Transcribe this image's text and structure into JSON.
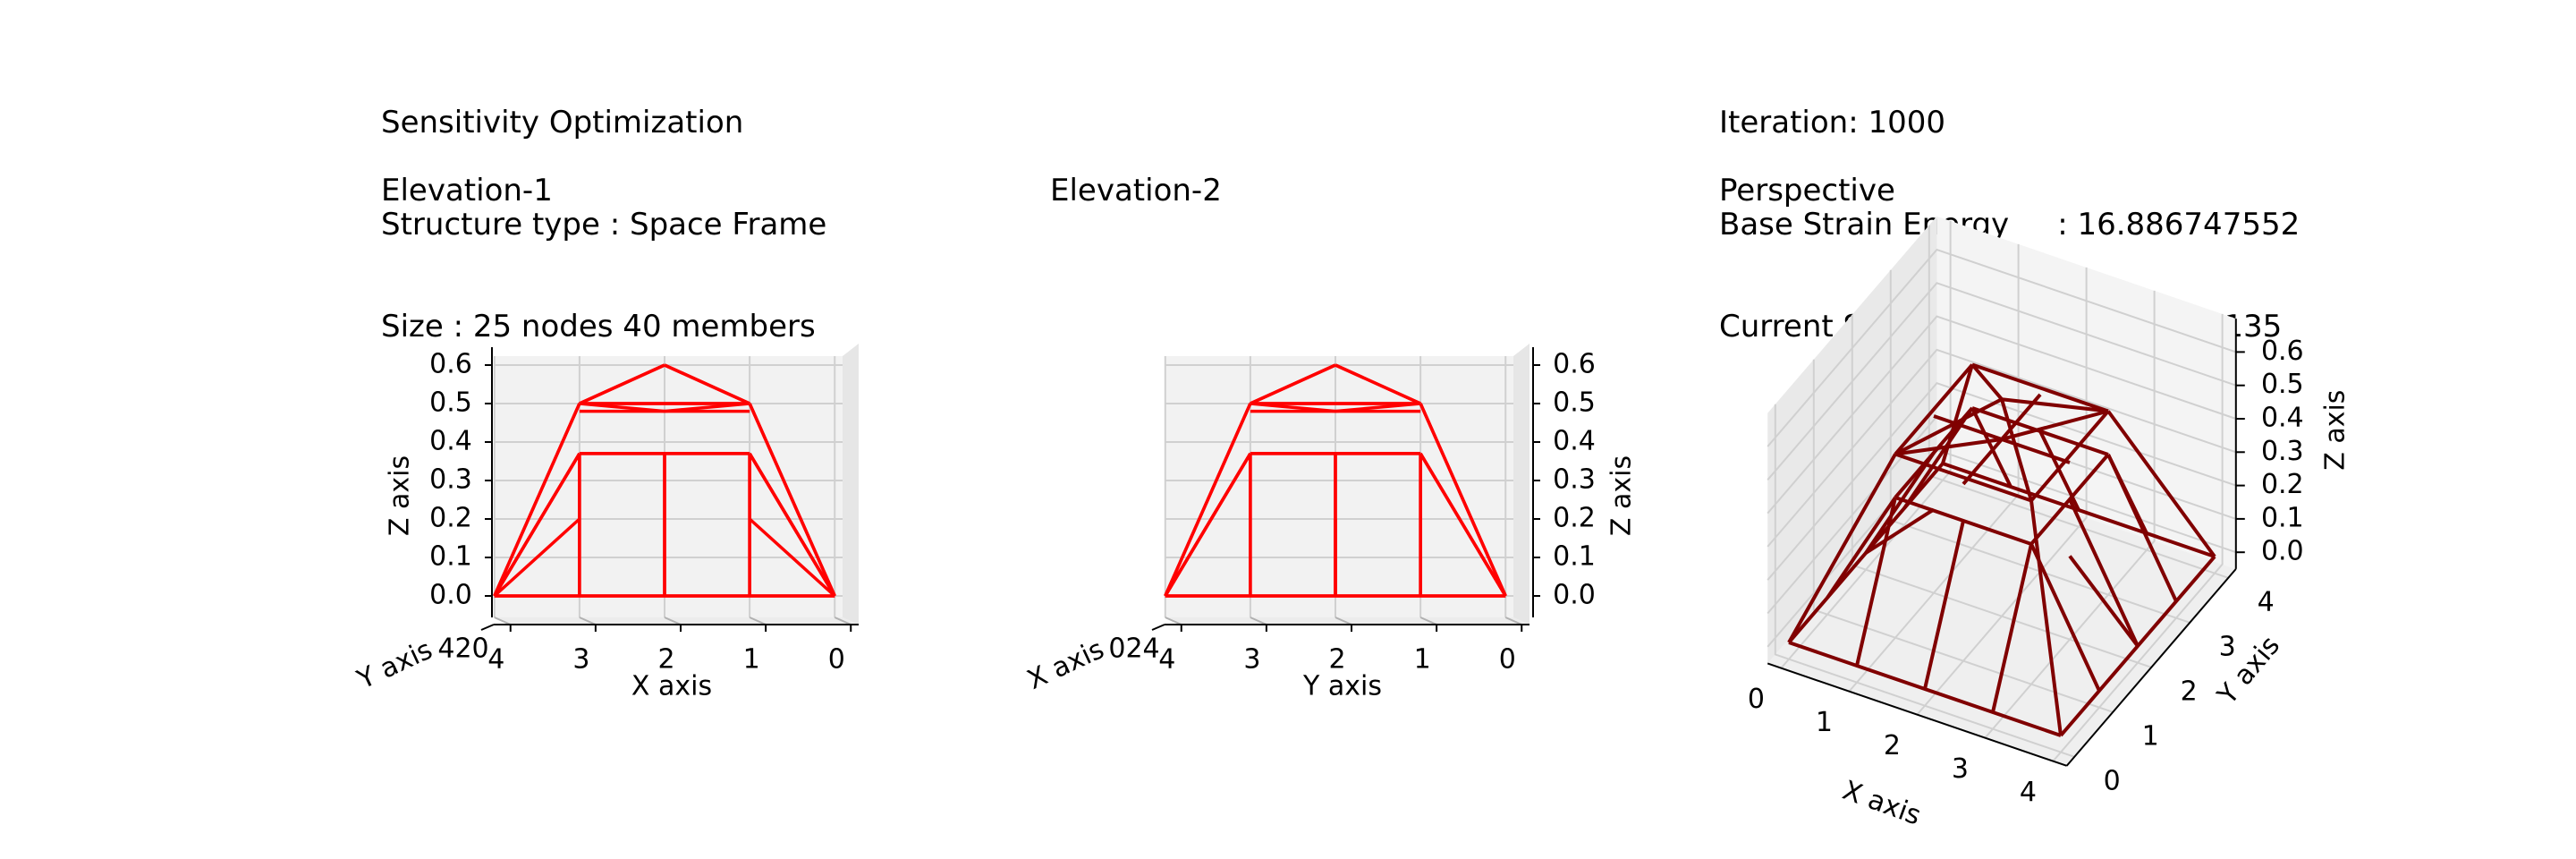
{
  "info_left": {
    "line1": "Sensitivity Optimization",
    "line2": "Structure type : Space Frame",
    "line3": "Size : 25 nodes 40 members"
  },
  "info_right": {
    "line1": "Iteration: 1000",
    "line2": "Base Strain Energy     : 16.886747552",
    "line3": "Current Strain Energy : 0.569571135"
  },
  "colors": {
    "elevation_member": "#ff0000",
    "perspective_member": "#800000",
    "pane": "#f2f2f2",
    "grid": "#d0d0d0"
  },
  "chart_data": [
    {
      "type": "3d-line",
      "title": "Elevation-1",
      "view": "front elevation (looking along Y)",
      "xlabel": "X axis",
      "ylabel": "Y axis",
      "zlabel": "Z axis",
      "x_ticks": [
        "4",
        "3",
        "2",
        "1",
        "0"
      ],
      "z_ticks": [
        "0.0",
        "0.1",
        "0.2",
        "0.3",
        "0.4",
        "0.5",
        "0.6"
      ],
      "y_tick_overlap": "420",
      "xlim": [
        0,
        4
      ],
      "zlim": [
        0,
        0.62
      ]
    },
    {
      "type": "3d-line",
      "title": "Elevation-2",
      "view": "side elevation (looking along X)",
      "xlabel": "Y axis",
      "ylabel": "X axis",
      "zlabel": "Z axis",
      "x_ticks": [
        "4",
        "3",
        "2",
        "1",
        "0"
      ],
      "z_ticks": [
        "0.0",
        "0.1",
        "0.2",
        "0.3",
        "0.4",
        "0.5",
        "0.6"
      ],
      "y_tick_overlap": "024",
      "xlim": [
        0,
        4
      ],
      "zlim": [
        0,
        0.62
      ]
    },
    {
      "type": "3d-line",
      "title": "Perspective",
      "view": "isometric perspective",
      "xlabel": "X axis",
      "ylabel": "Y axis",
      "zlabel": "Z axis",
      "x_ticks": [
        "0",
        "1",
        "2",
        "3",
        "4"
      ],
      "y_ticks": [
        "0",
        "1",
        "2",
        "3",
        "4"
      ],
      "z_ticks": [
        "0.0",
        "0.1",
        "0.2",
        "0.3",
        "0.4",
        "0.5",
        "0.6"
      ],
      "xlim": [
        0,
        4
      ],
      "ylim": [
        0,
        4
      ],
      "zlim": [
        0,
        0.62
      ]
    }
  ],
  "structure": {
    "nodes": 25,
    "members": 40,
    "z_levels": {
      "base": 0.0,
      "intermediate_members": 0.37,
      "inner_ring": 0.48,
      "apex": 0.6
    }
  }
}
